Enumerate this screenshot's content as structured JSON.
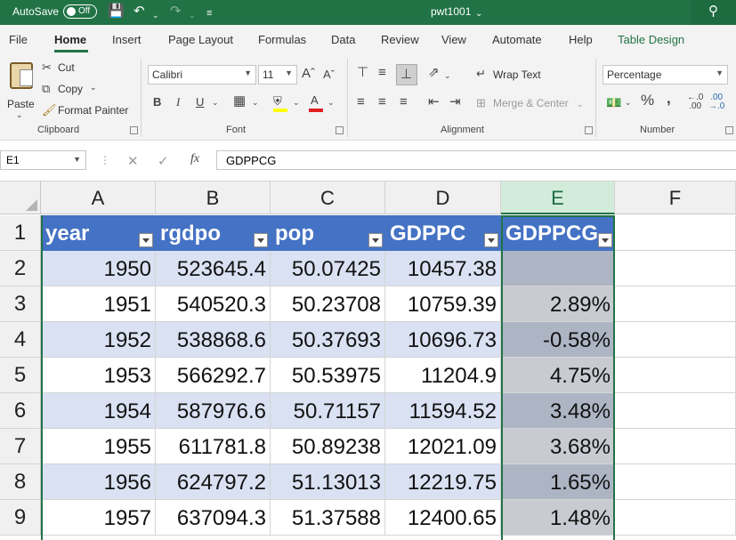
{
  "titlebar": {
    "autosave_label": "AutoSave",
    "autosave_state": "Off",
    "title": "pwt1001",
    "icons": [
      "save-icon",
      "undo-icon",
      "redo-icon",
      "customize-icon",
      "search-icon"
    ]
  },
  "tabs": [
    "File",
    "Home",
    "Insert",
    "Page Layout",
    "Formulas",
    "Data",
    "Review",
    "View",
    "Automate",
    "Help",
    "Table Design"
  ],
  "active_tab": "Home",
  "ribbon": {
    "clipboard": {
      "paste": "Paste",
      "cut": "Cut",
      "copy": "Copy",
      "format_painter": "Format Painter",
      "label": "Clipboard"
    },
    "font": {
      "name": "Calibri",
      "size": "11",
      "bold": "B",
      "italic": "I",
      "underline": "U",
      "label": "Font"
    },
    "alignment": {
      "wrap_text": "Wrap Text",
      "merge_center": "Merge & Center",
      "label": "Alignment"
    },
    "number": {
      "format": "Percentage",
      "percent": "%",
      "comma": ",",
      "label": "Number"
    }
  },
  "formula_bar": {
    "name_box": "E1",
    "formula": "GDPPCG"
  },
  "grid": {
    "columns": [
      "A",
      "B",
      "C",
      "D",
      "E",
      "F"
    ],
    "selected_column": "E",
    "rows": [
      "1",
      "2",
      "3",
      "4",
      "5",
      "6",
      "7",
      "8",
      "9"
    ],
    "headers": [
      "year",
      "rgdpo",
      "pop",
      "GDPPC",
      "GDPPCG"
    ],
    "data": [
      [
        "1950",
        "523645.4",
        "50.07425",
        "10457.38",
        ""
      ],
      [
        "1951",
        "540520.3",
        "50.23708",
        "10759.39",
        "2.89%"
      ],
      [
        "1952",
        "538868.6",
        "50.37693",
        "10696.73",
        "-0.58%"
      ],
      [
        "1953",
        "566292.7",
        "50.53975",
        "11204.9",
        "4.75%"
      ],
      [
        "1954",
        "587976.6",
        "50.71157",
        "11594.52",
        "3.48%"
      ],
      [
        "1955",
        "611781.8",
        "50.89238",
        "12021.09",
        "3.68%"
      ],
      [
        "1956",
        "624797.2",
        "51.13013",
        "12219.75",
        "1.65%"
      ],
      [
        "1957",
        "637094.3",
        "51.37588",
        "12400.65",
        "1.48%"
      ]
    ]
  },
  "colors": {
    "accent": "#217346",
    "table_header": "#4472c4",
    "band": "#d9e1f2"
  }
}
